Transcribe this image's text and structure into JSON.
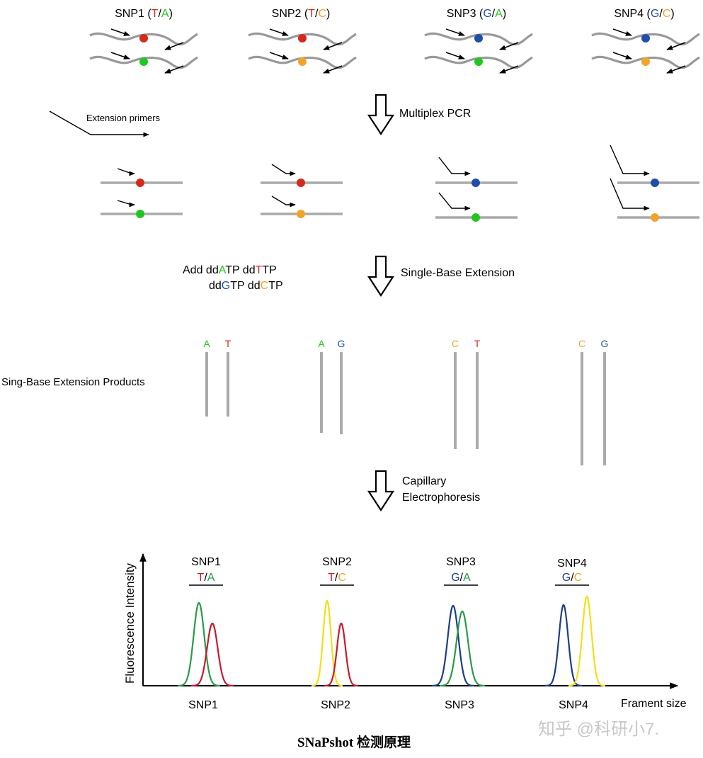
{
  "colors": {
    "A": "#22c522",
    "T": "#d42a1e",
    "G": "#1f4fa8",
    "C": "#f0a52a",
    "gray": "#a9a9a9",
    "peakA": "#2a9a47",
    "peakT": "#c41b2e",
    "peakG": "#1c3d86",
    "peakC": "#f2de1b"
  },
  "snps": [
    {
      "name": "SNP1",
      "open": " (",
      "a1": "T",
      "sep": "/",
      "a2": "A",
      "close": ")"
    },
    {
      "name": "SNP2",
      "open": " (",
      "a1": "T",
      "sep": "/",
      "a2": "C",
      "close": ")"
    },
    {
      "name": "SNP3",
      "open": " (",
      "a1": "G",
      "sep": "/",
      "a2": "A",
      "close": ")"
    },
    {
      "name": "SNP4",
      "open": " (",
      "a1": "G",
      "sep": "/",
      "a2": "C",
      "close": ")"
    }
  ],
  "steps": [
    "Multiplex PCR",
    "Single-Base Extension",
    "Capillary",
    "Electrophoresis"
  ],
  "extension_primers_label": "Extension primers",
  "add_line1": [
    "Add dd",
    "A",
    "TP dd",
    "T",
    "TP"
  ],
  "add_line2": [
    "dd",
    "G",
    "TP dd",
    "C",
    "TP"
  ],
  "products_label": "Sing-Base Extension Products",
  "product_letters": [
    "A",
    "T",
    "A",
    "G",
    "C",
    "T",
    "C",
    "G"
  ],
  "electro": {
    "ylabel": "Fluorescence Intensity",
    "xlabel": "Frament size",
    "peak_labels": [
      "SNP1",
      "SNP2",
      "SNP3",
      "SNP4"
    ],
    "x_labels": [
      "SNP1",
      "SNP2",
      "SNP3",
      "SNP4"
    ],
    "alleles": [
      {
        "a1": "T",
        "sep": "/",
        "a2": "A"
      },
      {
        "a1": "T",
        "sep": "/",
        "a2": "C"
      },
      {
        "a1": "G",
        "sep": "/",
        "a2": "A"
      },
      {
        "a1": "G",
        "sep": "/",
        "a2": "C"
      }
    ]
  },
  "caption": "SNaPshot 检测原理",
  "watermark": "知乎 @科研小7."
}
